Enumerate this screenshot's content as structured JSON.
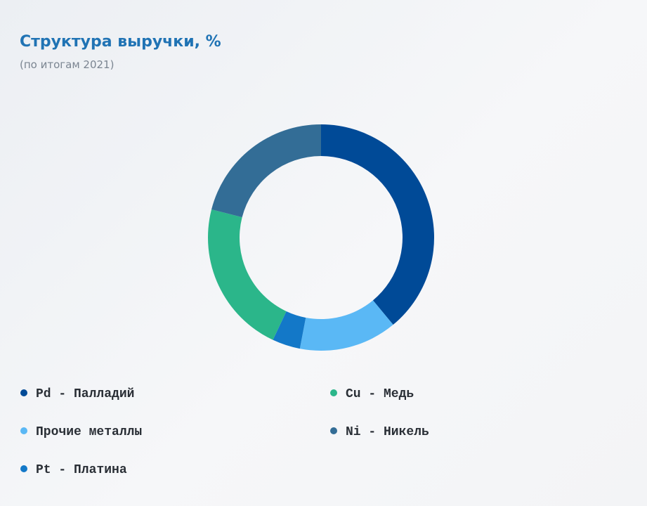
{
  "chart_data": {
    "type": "donut",
    "title": "Структура выручки, %",
    "subtitle": "(по итогам 2021)",
    "categories": [
      "Pd - Палладий",
      "Прочие металлы",
      "Pt - Платина",
      "Cu - Медь",
      "Ni - Никель"
    ],
    "values": [
      39,
      14,
      4,
      22,
      21
    ],
    "colors": [
      "#004a97",
      "#5ab8f5",
      "#1378c8",
      "#2bb68a",
      "#336d96"
    ]
  }
}
